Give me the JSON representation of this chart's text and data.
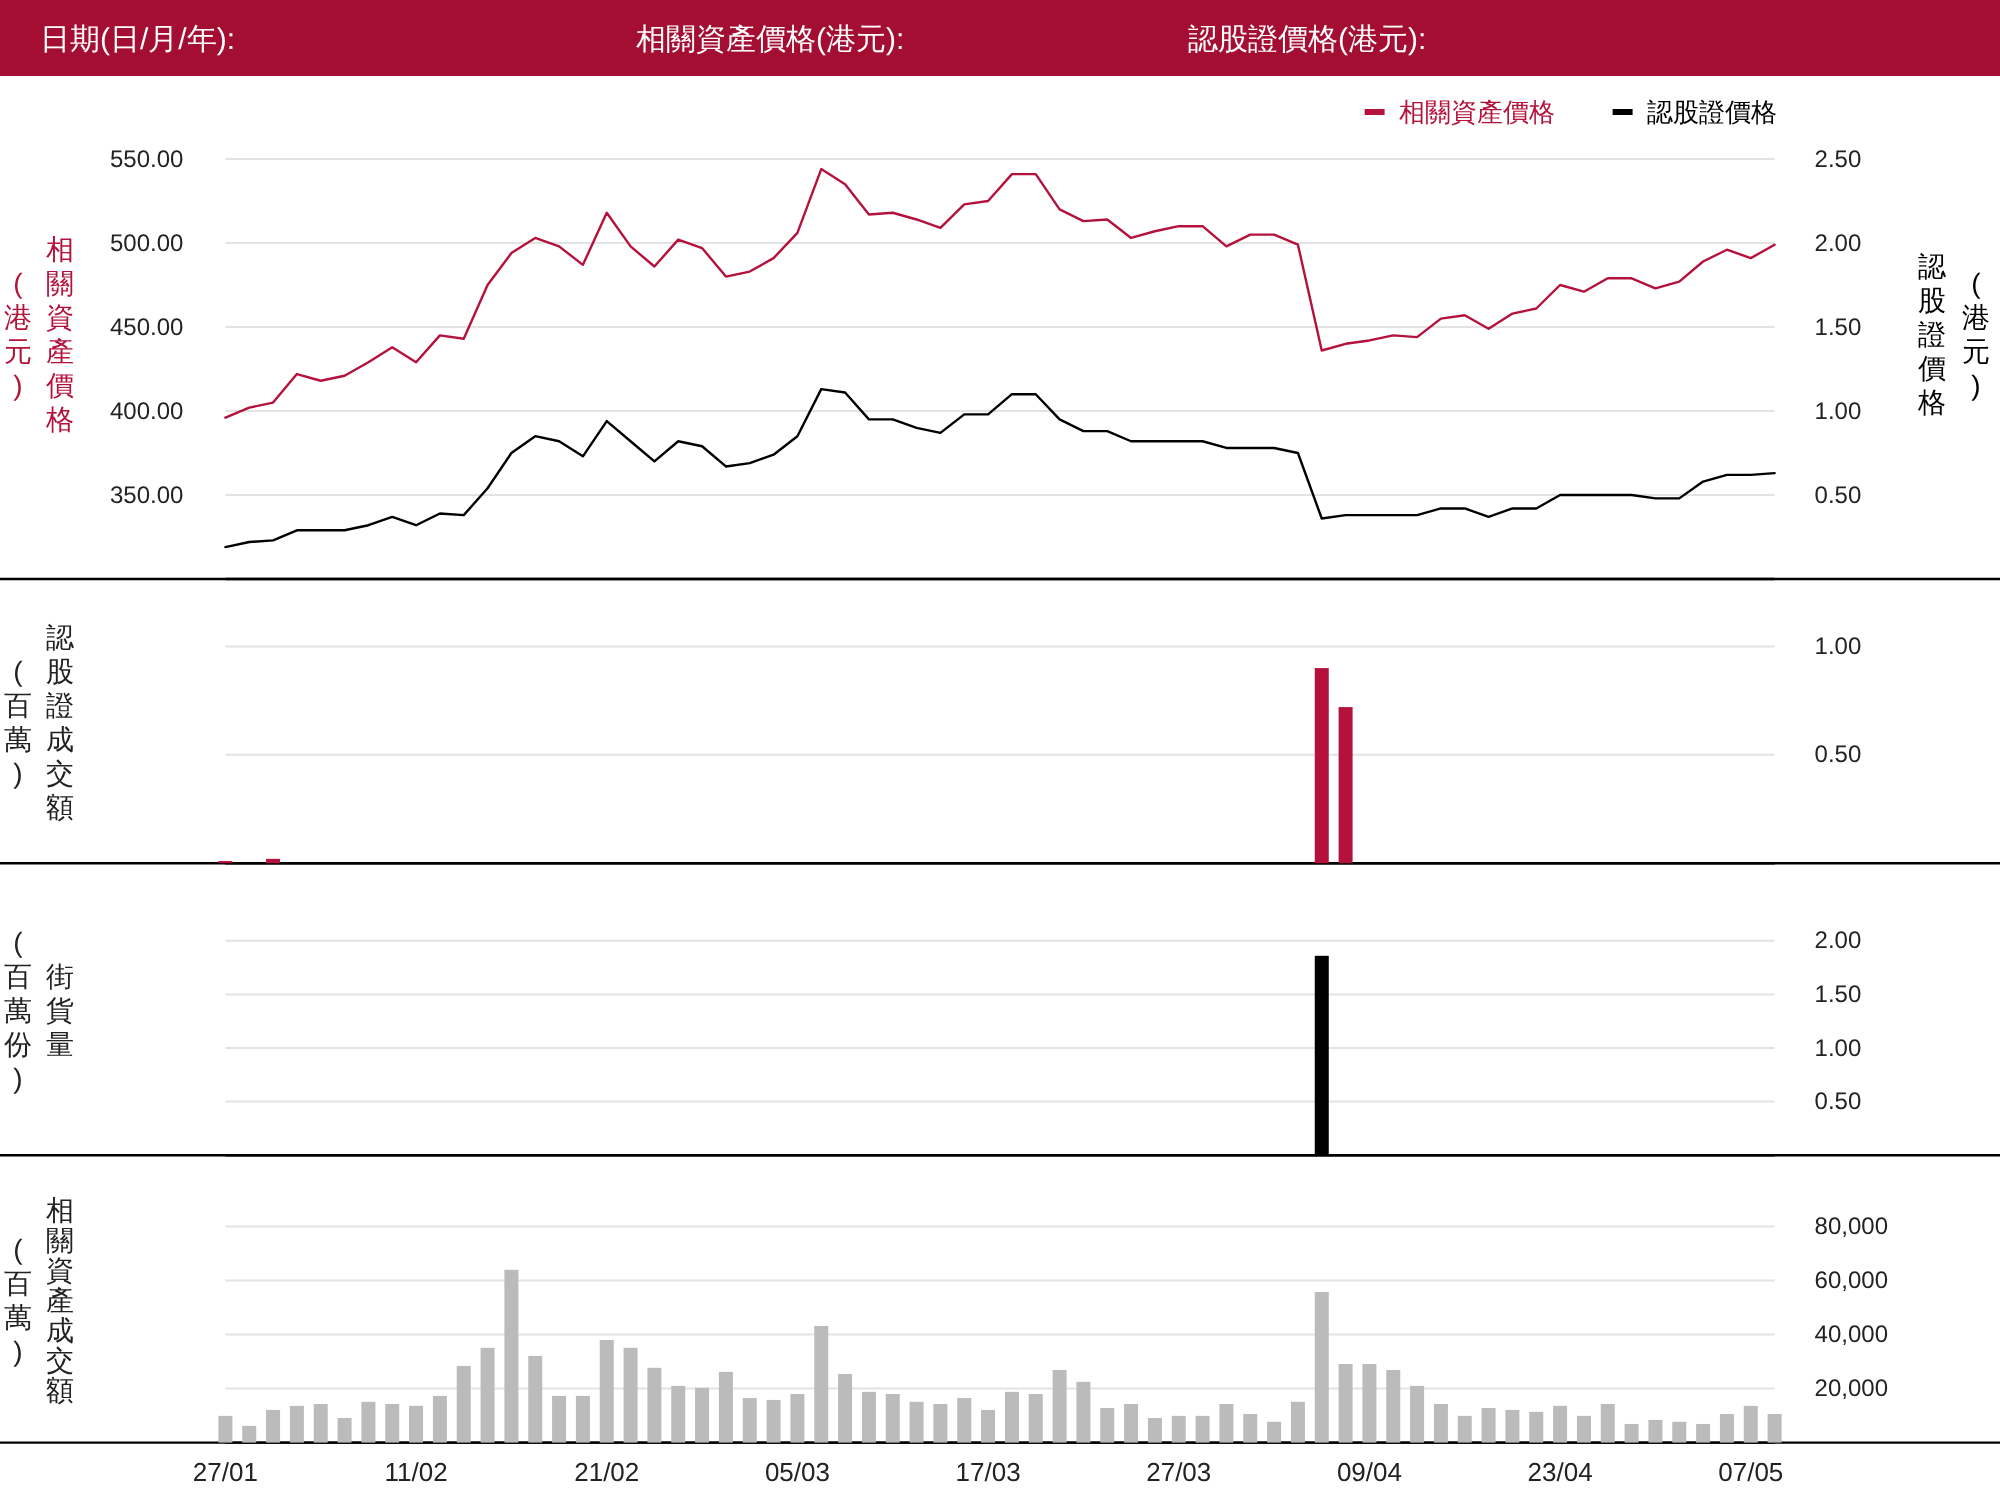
{
  "chart_data": [
    {
      "type": "line",
      "annotations": [
        "日期(日/月/年):",
        "相關資產價格(港元):",
        "認股證價格(港元):"
      ],
      "ylabel": "相關資產價格\n(港元)",
      "y2label": "認股證價格\n(港元)",
      "categories": [
        null,
        null,
        null,
        null,
        null,
        null,
        null,
        null,
        null,
        null,
        null,
        null,
        null,
        null,
        null,
        null,
        null,
        null,
        null,
        null,
        null,
        null,
        null,
        null,
        null,
        null,
        null,
        null,
        null,
        null,
        null,
        null,
        null,
        null,
        null,
        null,
        null,
        null,
        null,
        null,
        null,
        null,
        null,
        null,
        null,
        null,
        null,
        null,
        null,
        null,
        null,
        null,
        null,
        null,
        null,
        null,
        null,
        null,
        null,
        null,
        null,
        null,
        null,
        null,
        null,
        null
      ],
      "series": [
        {
          "name": "相關資產價格",
          "color": "#b4123c",
          "values": [
            396,
            402,
            405,
            422,
            418,
            421,
            429,
            438,
            429,
            445,
            443,
            475,
            494,
            503,
            498,
            487,
            518,
            498,
            486,
            502,
            497,
            480,
            483,
            491,
            506,
            544,
            535,
            517,
            518,
            514,
            509,
            523,
            525,
            541,
            541,
            520,
            513,
            514,
            503,
            507,
            510,
            510,
            498,
            505,
            505,
            499,
            436,
            440,
            442,
            445,
            444,
            455,
            457,
            449,
            458,
            461,
            475,
            471,
            479,
            479,
            473,
            477,
            489,
            496,
            491,
            499
          ]
        },
        {
          "name": "認股證價格",
          "color": "#000000",
          "axis": "y2",
          "values": [
            0.19,
            0.22,
            0.23,
            0.29,
            0.29,
            0.29,
            0.32,
            0.37,
            0.32,
            0.39,
            0.38,
            0.54,
            0.75,
            0.85,
            0.82,
            0.73,
            0.94,
            0.82,
            0.7,
            0.82,
            0.79,
            0.67,
            0.69,
            0.74,
            0.85,
            1.13,
            1.11,
            0.95,
            0.95,
            0.9,
            0.87,
            0.98,
            0.98,
            1.1,
            1.1,
            0.95,
            0.88,
            0.88,
            0.82,
            0.82,
            0.82,
            0.82,
            0.78,
            0.78,
            0.78,
            0.75,
            0.36,
            0.38,
            0.38,
            0.38,
            0.38,
            0.42,
            0.42,
            0.37,
            0.42,
            0.42,
            0.5,
            0.5,
            0.5,
            0.5,
            0.48,
            0.48,
            0.58,
            0.62,
            0.62,
            0.63
          ]
        }
      ],
      "ylim": [
        300,
        550
      ],
      "yticks": [
        {
          "value": 350,
          "label": "350.00"
        },
        {
          "value": 400,
          "label": "400.00"
        },
        {
          "value": 450,
          "label": "450.00"
        },
        {
          "value": 500,
          "label": "500.00"
        },
        {
          "value": 550,
          "label": "550.00"
        }
      ],
      "y2lim": [
        0,
        2.5
      ],
      "y2ticks": [
        {
          "value": 0.5,
          "label": "0.50"
        },
        {
          "value": 1,
          "label": "1.00"
        },
        {
          "value": 1.5,
          "label": "1.50"
        },
        {
          "value": 2,
          "label": "2.00"
        },
        {
          "value": 2.5,
          "label": "2.50"
        }
      ],
      "grid": "y",
      "legend": "top right"
    },
    {
      "type": "bar",
      "ylabel": "認股證成交額\n(百萬)",
      "categories": [
        null,
        null,
        null,
        null,
        null,
        null,
        null,
        null,
        null,
        null,
        null,
        null,
        null,
        null,
        null,
        null,
        null,
        null,
        null,
        null,
        null,
        null,
        null,
        null,
        null,
        null,
        null,
        null,
        null,
        null,
        null,
        null,
        null,
        null,
        null,
        null,
        null,
        null,
        null,
        null,
        null,
        null,
        null,
        null,
        null,
        null,
        null,
        null,
        null,
        null,
        null,
        null,
        null,
        null,
        null,
        null,
        null,
        null,
        null,
        null,
        null,
        null,
        null,
        null,
        null,
        null
      ],
      "values": [
        0.01,
        null,
        0.02,
        null,
        null,
        null,
        null,
        null,
        null,
        null,
        null,
        null,
        null,
        null,
        null,
        null,
        null,
        null,
        null,
        null,
        null,
        null,
        null,
        null,
        null,
        null,
        null,
        null,
        null,
        null,
        null,
        null,
        null,
        null,
        null,
        null,
        null,
        null,
        null,
        null,
        null,
        null,
        null,
        null,
        null,
        null,
        0.9,
        0.72,
        null,
        null,
        null,
        null,
        null,
        null,
        null,
        null,
        null,
        null,
        null,
        null,
        null,
        null,
        null,
        null,
        null,
        null
      ],
      "color": "#b4123c",
      "ylim": [
        0,
        1
      ],
      "yticks": [
        {
          "value": 0.5,
          "label": "0.50"
        },
        {
          "value": 1,
          "label": "1.00"
        }
      ],
      "grid": "y"
    },
    {
      "type": "bar",
      "ylabel": "街貨量\n(百萬份)",
      "categories": [
        null,
        null,
        null,
        null,
        null,
        null,
        null,
        null,
        null,
        null,
        null,
        null,
        null,
        null,
        null,
        null,
        null,
        null,
        null,
        null,
        null,
        null,
        null,
        null,
        null,
        null,
        null,
        null,
        null,
        null,
        null,
        null,
        null,
        null,
        null,
        null,
        null,
        null,
        null,
        null,
        null,
        null,
        null,
        null,
        null,
        null,
        null,
        null,
        null,
        null,
        null,
        null,
        null,
        null,
        null,
        null,
        null,
        null,
        null,
        null,
        null,
        null,
        null,
        null,
        null,
        null
      ],
      "values": [
        null,
        null,
        null,
        null,
        null,
        null,
        null,
        null,
        null,
        null,
        null,
        null,
        null,
        null,
        null,
        null,
        null,
        null,
        null,
        null,
        null,
        null,
        null,
        null,
        null,
        null,
        null,
        null,
        null,
        null,
        null,
        null,
        null,
        null,
        null,
        null,
        null,
        null,
        null,
        null,
        null,
        null,
        null,
        null,
        null,
        null,
        1.86,
        null,
        null,
        null,
        null,
        null,
        null,
        null,
        null,
        null,
        null,
        null,
        null,
        null,
        null,
        null,
        null,
        null,
        null,
        null
      ],
      "color": "#000000",
      "ylim": [
        0,
        2
      ],
      "yticks": [
        {
          "value": 0.5,
          "label": "0.50"
        },
        {
          "value": 1,
          "label": "1.00"
        },
        {
          "value": 1.5,
          "label": "1.50"
        },
        {
          "value": 2,
          "label": "2.00"
        }
      ],
      "grid": "y"
    },
    {
      "type": "bar",
      "ylabel": "相關資產成交額\n(百萬)",
      "categories": [
        "27/01",
        null,
        null,
        null,
        null,
        null,
        null,
        null,
        "11/02",
        null,
        null,
        null,
        null,
        null,
        null,
        null,
        "21/02",
        null,
        null,
        null,
        null,
        null,
        null,
        null,
        "05/03",
        null,
        null,
        null,
        null,
        null,
        null,
        null,
        "17/03",
        null,
        null,
        null,
        null,
        null,
        null,
        null,
        "27/03",
        null,
        null,
        null,
        null,
        null,
        null,
        null,
        "09/04",
        null,
        null,
        null,
        null,
        null,
        null,
        null,
        "23/04",
        null,
        null,
        null,
        null,
        null,
        null,
        null,
        "07/05",
        null
      ],
      "values": [
        9900,
        6200,
        12100,
        13600,
        14300,
        9100,
        15100,
        14300,
        13600,
        17300,
        28400,
        35100,
        64000,
        32100,
        17300,
        17300,
        38000,
        35100,
        27700,
        21000,
        20300,
        26200,
        16500,
        15800,
        18000,
        43200,
        25400,
        18800,
        18000,
        15100,
        14300,
        16500,
        12100,
        18800,
        18000,
        26900,
        22500,
        12800,
        14300,
        9100,
        9900,
        9900,
        14300,
        10600,
        7700,
        15100,
        55800,
        29100,
        29100,
        26900,
        21000,
        14300,
        9900,
        12800,
        12100,
        11400,
        13600,
        9900,
        14300,
        6900,
        8400,
        7700,
        6900,
        10600,
        13600,
        10600
      ],
      "color": "#bbbbbb",
      "ylim": [
        0,
        80000
      ],
      "yticks": [
        {
          "value": 20000,
          "label": "20,000"
        },
        {
          "value": 40000,
          "label": "40,000"
        },
        {
          "value": 60000,
          "label": "60,000"
        },
        {
          "value": 80000,
          "label": "80,000"
        }
      ],
      "grid": "y"
    }
  ]
}
